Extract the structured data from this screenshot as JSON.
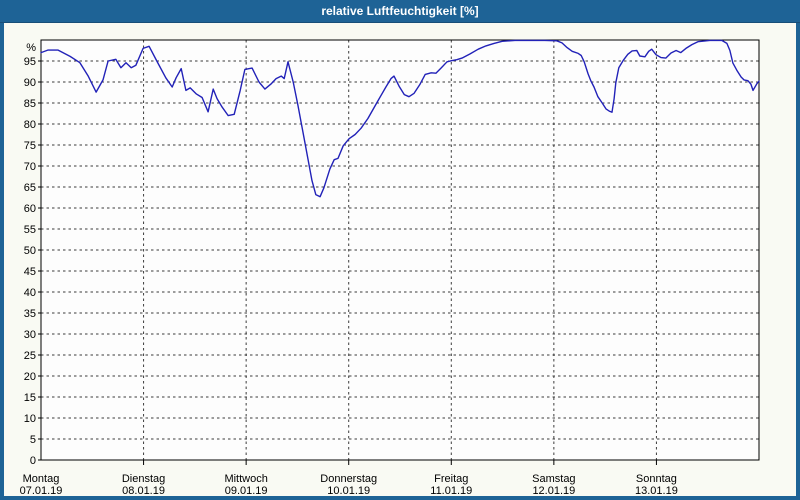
{
  "header": {
    "title": "relative Luftfeuchtigkeit [%]"
  },
  "colors": {
    "titlebar_bg": "#1e6396",
    "titlebar_edge": "#174e78",
    "frame": "#1e6396",
    "title_text": "#ffffff",
    "content_bg": "#f9faf3",
    "plot_bg": "#fdfdfd",
    "plot_border": "#000000",
    "grid": "#3c3c3c",
    "axis_text": "#000000",
    "line": "#2222b8"
  },
  "chart_data": {
    "type": "line",
    "title": "relative Luftfeuchtigkeit [%]",
    "ylabel": "%",
    "xlabel": "",
    "ylim": [
      0,
      100
    ],
    "x_range_hours": [
      0,
      168
    ],
    "grid": {
      "style": "dashed",
      "horizontal_every_percent": 5,
      "vertical": "day-boundaries"
    },
    "legend": "none",
    "y_axis": {
      "unit_label": "%",
      "tick_values": [
        95,
        90,
        85,
        80,
        75,
        70,
        65,
        60,
        55,
        50,
        45,
        40,
        35,
        30,
        25,
        20,
        15,
        10,
        5,
        0
      ]
    },
    "x_axis": {
      "days": [
        {
          "label": "Montag",
          "date": "07.01.19"
        },
        {
          "label": "Dienstag",
          "date": "08.01.19"
        },
        {
          "label": "Mittwoch",
          "date": "09.01.19"
        },
        {
          "label": "Donnerstag",
          "date": "10.01.19"
        },
        {
          "label": "Freitag",
          "date": "11.01.19"
        },
        {
          "label": "Samstag",
          "date": "12.01.19"
        },
        {
          "label": "Sonntag",
          "date": "13.01.19"
        }
      ]
    },
    "series": [
      {
        "name": "relative Luftfeuchtigkeit",
        "color": "#2222b8",
        "points_hours_percent": [
          [
            0,
            97.0
          ],
          [
            1.6,
            97.6
          ],
          [
            4,
            97.6
          ],
          [
            6.8,
            96.1
          ],
          [
            9.1,
            94.6
          ],
          [
            11,
            91.5
          ],
          [
            12.9,
            87.6
          ],
          [
            14.5,
            90.5
          ],
          [
            15.7,
            95
          ],
          [
            17.5,
            95.4
          ],
          [
            18.7,
            93.4
          ],
          [
            19.9,
            94.6
          ],
          [
            21.1,
            93.4
          ],
          [
            22.2,
            94
          ],
          [
            23.9,
            98
          ],
          [
            25.3,
            98.5
          ],
          [
            27.1,
            95
          ],
          [
            29.2,
            91
          ],
          [
            30.7,
            88.8
          ],
          [
            31.6,
            91
          ],
          [
            32.8,
            93.2
          ],
          [
            33.9,
            88
          ],
          [
            34.9,
            88.6
          ],
          [
            36.3,
            87.2
          ],
          [
            37.7,
            86.3
          ],
          [
            39.1,
            82.9
          ],
          [
            40.3,
            88.3
          ],
          [
            41.2,
            86
          ],
          [
            42.4,
            84
          ],
          [
            43.8,
            82
          ],
          [
            45.2,
            82.3
          ],
          [
            46.6,
            88
          ],
          [
            47.7,
            93
          ],
          [
            49.4,
            93.3
          ],
          [
            51,
            90
          ],
          [
            52.4,
            88.3
          ],
          [
            53.8,
            89.5
          ],
          [
            55,
            90.8
          ],
          [
            56.2,
            91.4
          ],
          [
            56.9,
            90.8
          ],
          [
            57.8,
            94.8
          ],
          [
            59,
            90
          ],
          [
            60.1,
            84.5
          ],
          [
            61.3,
            78
          ],
          [
            62.5,
            71.5
          ],
          [
            63.4,
            66.5
          ],
          [
            64.3,
            63.2
          ],
          [
            65.3,
            62.7
          ],
          [
            66.2,
            64.8
          ],
          [
            67.6,
            69.3
          ],
          [
            68.6,
            71.5
          ],
          [
            69.5,
            71.8
          ],
          [
            70.7,
            74.8
          ],
          [
            72.1,
            76.5
          ],
          [
            73.5,
            77.5
          ],
          [
            74.9,
            79
          ],
          [
            76.5,
            81.3
          ],
          [
            78.6,
            85.1
          ],
          [
            80.7,
            88.8
          ],
          [
            81.9,
            90.8
          ],
          [
            82.6,
            91.4
          ],
          [
            83.8,
            89
          ],
          [
            85,
            87
          ],
          [
            86.1,
            86.5
          ],
          [
            87.3,
            87.3
          ],
          [
            88.7,
            89.5
          ],
          [
            89.9,
            91.8
          ],
          [
            91.3,
            92.2
          ],
          [
            92.4,
            92.1
          ],
          [
            93.6,
            93.3
          ],
          [
            95,
            94.8
          ],
          [
            96.2,
            95.1
          ],
          [
            97.3,
            95.3
          ],
          [
            98.5,
            95.7
          ],
          [
            100.4,
            96.7
          ],
          [
            102.3,
            97.8
          ],
          [
            104.1,
            98.6
          ],
          [
            106,
            99.2
          ],
          [
            107.9,
            99.7
          ],
          [
            110.9,
            99.9
          ],
          [
            114.4,
            99.9
          ],
          [
            117.9,
            99.9
          ],
          [
            120.7,
            99.8
          ],
          [
            121.9,
            99.3
          ],
          [
            123.1,
            98.2
          ],
          [
            124.3,
            97.3
          ],
          [
            125.7,
            96.8
          ],
          [
            126.4,
            96.3
          ],
          [
            127.1,
            94.8
          ],
          [
            128,
            92
          ],
          [
            128.7,
            90.2
          ],
          [
            129.4,
            88.8
          ],
          [
            130.3,
            86.5
          ],
          [
            131.3,
            85
          ],
          [
            132.2,
            83.6
          ],
          [
            133.1,
            83
          ],
          [
            133.6,
            82.8
          ],
          [
            134.1,
            86
          ],
          [
            134.5,
            89.8
          ],
          [
            135.2,
            93.4
          ],
          [
            136.2,
            95.1
          ],
          [
            137.3,
            96.6
          ],
          [
            138.3,
            97.4
          ],
          [
            139.4,
            97.5
          ],
          [
            140.1,
            96.2
          ],
          [
            141.3,
            96
          ],
          [
            142.2,
            97.3
          ],
          [
            142.9,
            97.8
          ],
          [
            143.9,
            96.5
          ],
          [
            145.1,
            95.8
          ],
          [
            146.2,
            95.7
          ],
          [
            147.4,
            96.9
          ],
          [
            148.6,
            97.5
          ],
          [
            149.7,
            97
          ],
          [
            150.9,
            98
          ],
          [
            152.3,
            98.9
          ],
          [
            153.7,
            99.6
          ],
          [
            156.5,
            99.9
          ],
          [
            159.3,
            99.9
          ],
          [
            160.5,
            99.2
          ],
          [
            161.2,
            97.5
          ],
          [
            161.9,
            94.5
          ],
          [
            162.8,
            92.8
          ],
          [
            163.8,
            91.2
          ],
          [
            164.5,
            90.5
          ],
          [
            165.4,
            90.3
          ],
          [
            166.1,
            89.5
          ],
          [
            166.6,
            88
          ],
          [
            167.5,
            89.6
          ],
          [
            168,
            90.2
          ]
        ]
      }
    ]
  }
}
